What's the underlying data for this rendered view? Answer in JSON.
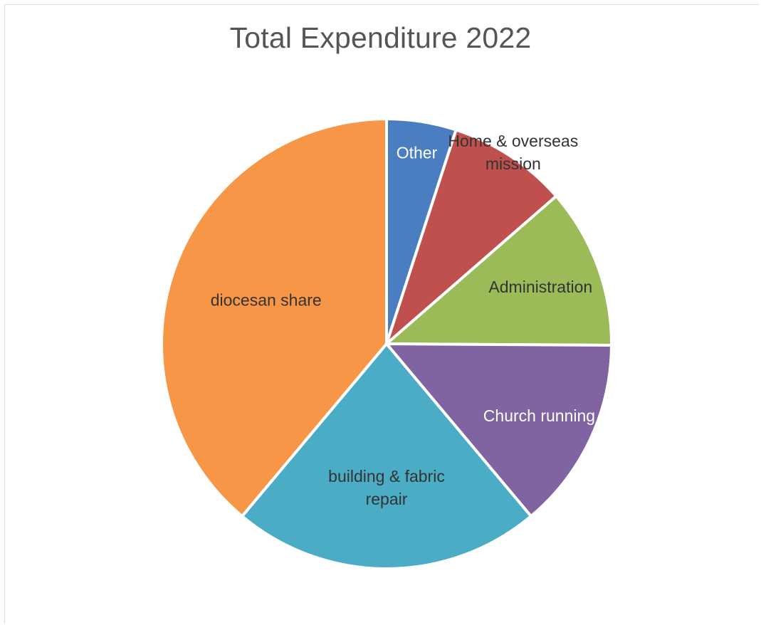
{
  "chart_data": {
    "type": "pie",
    "title": "Total Expenditure 2022",
    "slices": [
      {
        "label": "Other",
        "value": 5.0,
        "color": "#4a7ec0",
        "label_color": "#ffffff"
      },
      {
        "label": "Home & overseas mission",
        "label_lines": [
          "Home & overseas",
          "mission"
        ],
        "value": 8.6,
        "color": "#c0504d",
        "label_color": "#333333"
      },
      {
        "label": "Administration",
        "value": 11.5,
        "color": "#9bbb59",
        "label_color": "#333333"
      },
      {
        "label": "Church running",
        "value": 13.8,
        "color": "#8064a2",
        "label_color": "#ffffff"
      },
      {
        "label": "building & fabric repair",
        "label_lines": [
          "building & fabric",
          "repair"
        ],
        "value": 22.2,
        "color": "#4bacc6",
        "label_color": "#333333"
      },
      {
        "label": "diocesan share",
        "value": 38.9,
        "color": "#f79646",
        "label_color": "#333333"
      }
    ]
  }
}
